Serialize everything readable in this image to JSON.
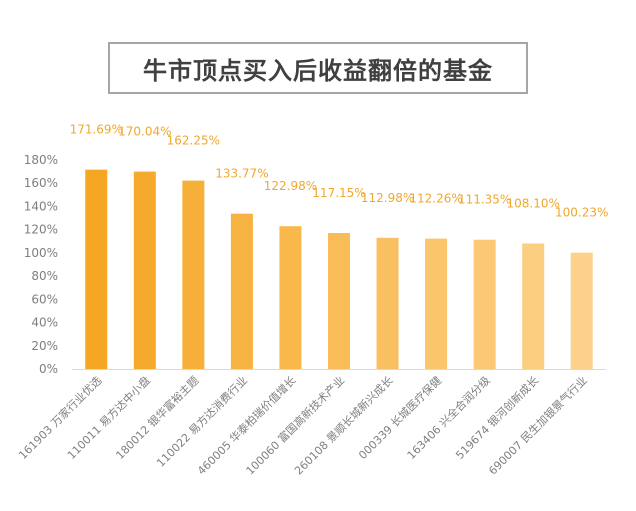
{
  "chart_data": {
    "type": "bar",
    "title": "牛市顶点买入后收益翻倍的基金",
    "categories": [
      "161903 万家行业优选",
      "110011 易方达中小盘",
      "180012 银华富裕主题",
      "110022 易方达消费行业",
      "460005 华泰柏瑞价值增长",
      "100060 富国高新技术产业",
      "260108 景顺长城新兴成长",
      "000339 长城医疗保健",
      "163406 兴全合润分级",
      "519674 银河创新成长",
      "690007 民生加银景气行业"
    ],
    "values": [
      171.69,
      170.04,
      162.25,
      133.77,
      122.98,
      117.15,
      112.98,
      112.26,
      111.35,
      108.1,
      100.23
    ],
    "value_labels": [
      "171.69%",
      "170.04%",
      "162.25%",
      "133.77%",
      "122.98%",
      "117.15%",
      "112.98%",
      "112.26%",
      "111.35%",
      "108.10%",
      "100.23%"
    ],
    "ylim": [
      0,
      180
    ],
    "yticks": [
      0,
      20,
      40,
      60,
      80,
      100,
      120,
      140,
      160,
      180
    ],
    "ytick_labels": [
      "0%",
      "20%",
      "40%",
      "60%",
      "80%",
      "100%",
      "120%",
      "140%",
      "160%",
      "180%"
    ],
    "xlabel": "",
    "ylabel": "",
    "grid": false,
    "bar_color_start": "#f5a623",
    "bar_color_end": "#fcd28a",
    "label_color": "#f0a830",
    "axis_text_color": "#7f7f7f"
  }
}
